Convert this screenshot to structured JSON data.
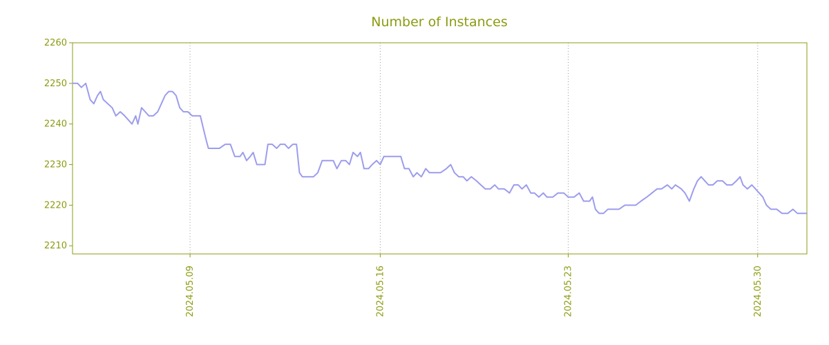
{
  "colors": {
    "accent": "#8c9b10",
    "line": "#9c9cee",
    "grid": "#999999",
    "background": "#ffffff"
  },
  "chart_data": {
    "type": "line",
    "title": "Number of Instances",
    "xlabel": "",
    "ylabel": "",
    "legend": "none",
    "grid": "vertical-dotted",
    "ylim": [
      2208,
      2260
    ],
    "y_ticks": [
      "2210",
      "2220",
      "2230",
      "2240",
      "2250",
      "2260"
    ],
    "x_ticks": [
      {
        "label": "2024.05.09",
        "pos": 0.16
      },
      {
        "label": "2024.05.16",
        "pos": 0.419
      },
      {
        "label": "2024.05.23",
        "pos": 0.675
      },
      {
        "label": "2024.05.30",
        "pos": 0.933
      }
    ],
    "series": [
      {
        "name": "instances",
        "points": [
          [
            0.0,
            2250
          ],
          [
            0.007,
            2250
          ],
          [
            0.012,
            2249
          ],
          [
            0.018,
            2250
          ],
          [
            0.024,
            2246
          ],
          [
            0.029,
            2245
          ],
          [
            0.034,
            2247
          ],
          [
            0.038,
            2248
          ],
          [
            0.042,
            2246
          ],
          [
            0.048,
            2245
          ],
          [
            0.054,
            2244
          ],
          [
            0.059,
            2242
          ],
          [
            0.065,
            2243
          ],
          [
            0.071,
            2242
          ],
          [
            0.076,
            2241
          ],
          [
            0.081,
            2240
          ],
          [
            0.086,
            2242
          ],
          [
            0.089,
            2240
          ],
          [
            0.094,
            2244
          ],
          [
            0.099,
            2243
          ],
          [
            0.104,
            2242
          ],
          [
            0.11,
            2242
          ],
          [
            0.116,
            2243
          ],
          [
            0.121,
            2245
          ],
          [
            0.126,
            2247
          ],
          [
            0.131,
            2248
          ],
          [
            0.136,
            2248
          ],
          [
            0.141,
            2247
          ],
          [
            0.146,
            2244
          ],
          [
            0.151,
            2243
          ],
          [
            0.157,
            2243
          ],
          [
            0.163,
            2242
          ],
          [
            0.168,
            2242
          ],
          [
            0.174,
            2242
          ],
          [
            0.178,
            2239
          ],
          [
            0.182,
            2236
          ],
          [
            0.185,
            2234
          ],
          [
            0.193,
            2234
          ],
          [
            0.2,
            2234
          ],
          [
            0.208,
            2235
          ],
          [
            0.215,
            2235
          ],
          [
            0.221,
            2232
          ],
          [
            0.228,
            2232
          ],
          [
            0.232,
            2233
          ],
          [
            0.237,
            2231
          ],
          [
            0.242,
            2232
          ],
          [
            0.246,
            2233
          ],
          [
            0.251,
            2230
          ],
          [
            0.257,
            2230
          ],
          [
            0.262,
            2230
          ],
          [
            0.266,
            2235
          ],
          [
            0.272,
            2235
          ],
          [
            0.278,
            2234
          ],
          [
            0.283,
            2235
          ],
          [
            0.289,
            2235
          ],
          [
            0.294,
            2234
          ],
          [
            0.3,
            2235
          ],
          [
            0.305,
            2235
          ],
          [
            0.309,
            2228
          ],
          [
            0.313,
            2227
          ],
          [
            0.321,
            2227
          ],
          [
            0.328,
            2227
          ],
          [
            0.334,
            2228
          ],
          [
            0.34,
            2231
          ],
          [
            0.347,
            2231
          ],
          [
            0.355,
            2231
          ],
          [
            0.36,
            2229
          ],
          [
            0.366,
            2231
          ],
          [
            0.372,
            2231
          ],
          [
            0.377,
            2230
          ],
          [
            0.382,
            2233
          ],
          [
            0.388,
            2232
          ],
          [
            0.392,
            2233
          ],
          [
            0.397,
            2229
          ],
          [
            0.403,
            2229
          ],
          [
            0.408,
            2230
          ],
          [
            0.414,
            2231
          ],
          [
            0.419,
            2230
          ],
          [
            0.424,
            2232
          ],
          [
            0.432,
            2232
          ],
          [
            0.439,
            2232
          ],
          [
            0.447,
            2232
          ],
          [
            0.452,
            2229
          ],
          [
            0.458,
            2229
          ],
          [
            0.464,
            2227
          ],
          [
            0.469,
            2228
          ],
          [
            0.475,
            2227
          ],
          [
            0.481,
            2229
          ],
          [
            0.486,
            2228
          ],
          [
            0.494,
            2228
          ],
          [
            0.501,
            2228
          ],
          [
            0.509,
            2229
          ],
          [
            0.515,
            2230
          ],
          [
            0.52,
            2228
          ],
          [
            0.526,
            2227
          ],
          [
            0.532,
            2227
          ],
          [
            0.537,
            2226
          ],
          [
            0.543,
            2227
          ],
          [
            0.55,
            2226
          ],
          [
            0.556,
            2225
          ],
          [
            0.562,
            2224
          ],
          [
            0.569,
            2224
          ],
          [
            0.575,
            2225
          ],
          [
            0.58,
            2224
          ],
          [
            0.588,
            2224
          ],
          [
            0.595,
            2223
          ],
          [
            0.601,
            2225
          ],
          [
            0.607,
            2225
          ],
          [
            0.612,
            2224
          ],
          [
            0.618,
            2225
          ],
          [
            0.624,
            2223
          ],
          [
            0.629,
            2223
          ],
          [
            0.635,
            2222
          ],
          [
            0.641,
            2223
          ],
          [
            0.646,
            2222
          ],
          [
            0.654,
            2222
          ],
          [
            0.661,
            2223
          ],
          [
            0.669,
            2223
          ],
          [
            0.675,
            2222
          ],
          [
            0.683,
            2222
          ],
          [
            0.69,
            2223
          ],
          [
            0.696,
            2221
          ],
          [
            0.704,
            2221
          ],
          [
            0.708,
            2222
          ],
          [
            0.712,
            2219
          ],
          [
            0.717,
            2218
          ],
          [
            0.723,
            2218
          ],
          [
            0.729,
            2219
          ],
          [
            0.737,
            2219
          ],
          [
            0.744,
            2219
          ],
          [
            0.752,
            2220
          ],
          [
            0.759,
            2220
          ],
          [
            0.767,
            2220
          ],
          [
            0.774,
            2221
          ],
          [
            0.782,
            2222
          ],
          [
            0.789,
            2223
          ],
          [
            0.796,
            2224
          ],
          [
            0.802,
            2224
          ],
          [
            0.81,
            2225
          ],
          [
            0.816,
            2224
          ],
          [
            0.821,
            2225
          ],
          [
            0.829,
            2224
          ],
          [
            0.834,
            2223
          ],
          [
            0.84,
            2221
          ],
          [
            0.846,
            2224
          ],
          [
            0.851,
            2226
          ],
          [
            0.856,
            2227
          ],
          [
            0.861,
            2226
          ],
          [
            0.866,
            2225
          ],
          [
            0.872,
            2225
          ],
          [
            0.878,
            2226
          ],
          [
            0.885,
            2226
          ],
          [
            0.891,
            2225
          ],
          [
            0.898,
            2225
          ],
          [
            0.904,
            2226
          ],
          [
            0.909,
            2227
          ],
          [
            0.913,
            2225
          ],
          [
            0.919,
            2224
          ],
          [
            0.925,
            2225
          ],
          [
            0.93,
            2224
          ],
          [
            0.935,
            2223
          ],
          [
            0.94,
            2222
          ],
          [
            0.945,
            2220
          ],
          [
            0.951,
            2219
          ],
          [
            0.959,
            2219
          ],
          [
            0.966,
            2218
          ],
          [
            0.974,
            2218
          ],
          [
            0.981,
            2219
          ],
          [
            0.987,
            2218
          ],
          [
            0.993,
            2218
          ],
          [
            1.0,
            2218
          ]
        ]
      }
    ]
  }
}
